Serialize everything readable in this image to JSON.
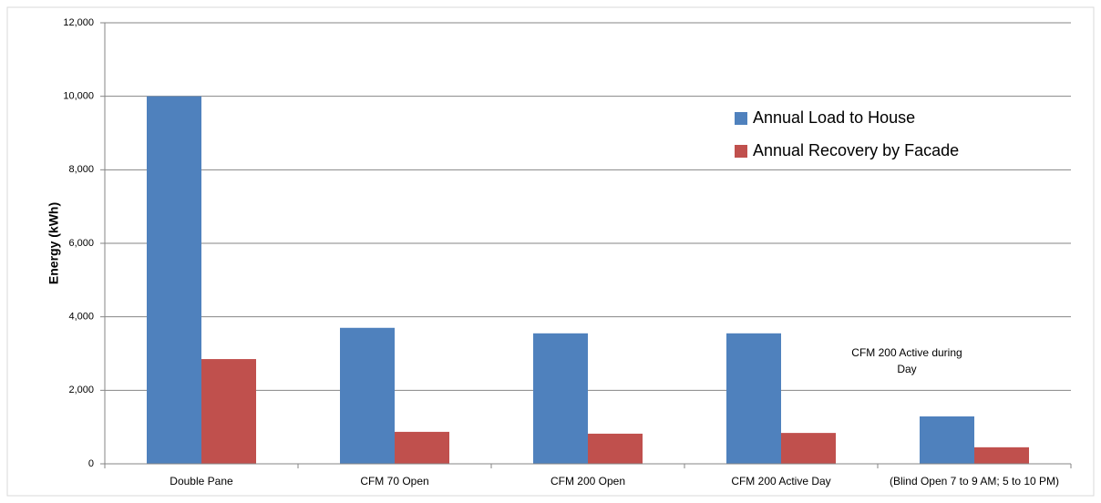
{
  "chart_data": {
    "type": "bar",
    "y_label": "Energy  (kWh)",
    "annotation": "CFM 200 Active during Day",
    "categories": [
      "Double Pane",
      "CFM 70 Open",
      "CFM 200 Open",
      "CFM 200 Active Day",
      "(Blind Open 7 to 9 AM; 5 to 10 PM)"
    ],
    "series": [
      {
        "name": "Annual Load to House",
        "color": "#4f81bd",
        "values": [
          10000,
          3700,
          3550,
          3550,
          1290
        ]
      },
      {
        "name": "Annual Recovery by Facade",
        "color": "#c0504d",
        "values": [
          2850,
          870,
          820,
          840,
          450
        ]
      }
    ],
    "ylim": [
      0,
      12000
    ],
    "yticks": [
      0,
      {
        "value": 2000,
        "label": "2,000"
      },
      {
        "value": 4000,
        "label": "4,000"
      },
      {
        "value": 6000,
        "label": "6,000"
      },
      {
        "value": 8000,
        "label": "8,000"
      },
      {
        "value": 10000,
        "label": "10,000"
      },
      {
        "value": 12000,
        "label": "12,000"
      }
    ],
    "grid": true,
    "legend_position": "upper-right"
  }
}
